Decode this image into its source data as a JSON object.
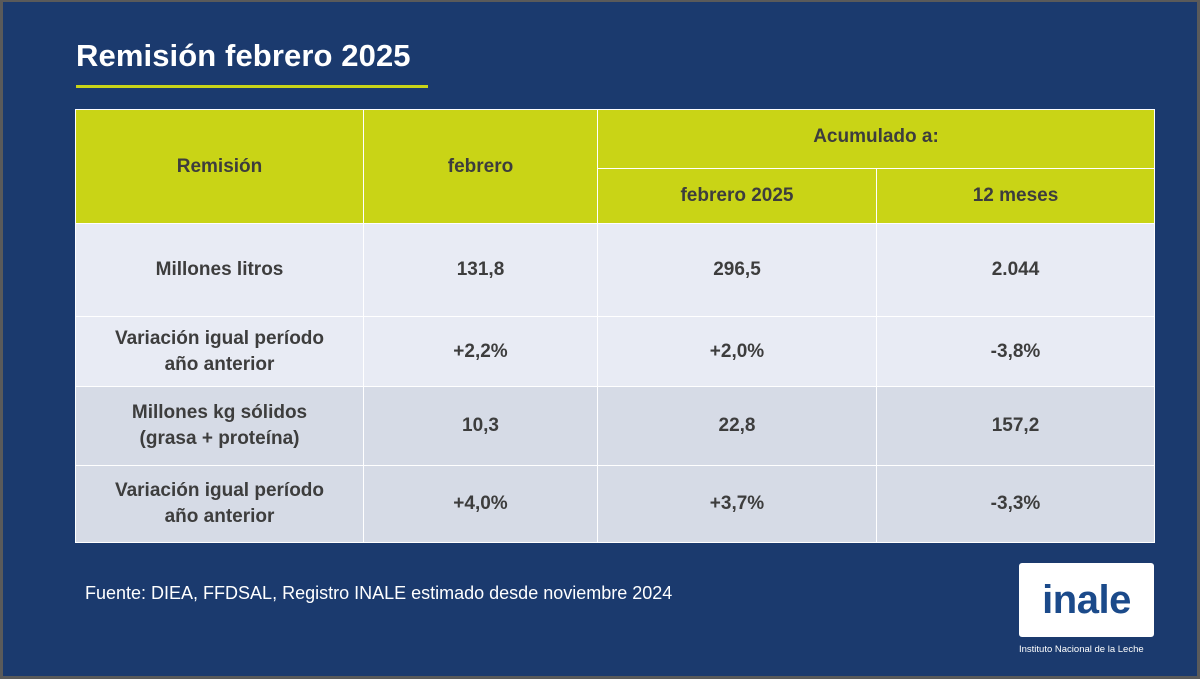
{
  "title": "Remisión febrero 2025",
  "table": {
    "headers": {
      "remision": "Remisión",
      "febrero": "febrero",
      "acumulado": "Acumulado a:",
      "acum_febrero": "febrero 2025",
      "acum_12": "12 meses"
    },
    "rows": [
      {
        "label_1": "Millones litros",
        "label_2": "",
        "febrero": "131,8",
        "acum_febrero": "296,5",
        "acum_12": "2.044"
      },
      {
        "label_1": "Variación igual período",
        "label_2": "año anterior",
        "febrero": "+2,2%",
        "acum_febrero": "+2,0%",
        "acum_12": "-3,8%"
      },
      {
        "label_1": "Millones kg sólidos",
        "label_2": "(grasa + proteína)",
        "febrero": "10,3",
        "acum_febrero": "22,8",
        "acum_12": "157,2"
      },
      {
        "label_1": "Variación igual período",
        "label_2": "año anterior",
        "febrero": "+4,0%",
        "acum_febrero": "+3,7%",
        "acum_12": "-3,3%"
      }
    ]
  },
  "source": "Fuente: DIEA, FFDSAL, Registro INALE estimado desde noviembre 2024",
  "logo": {
    "text": "inale",
    "caption": "Instituto Nacional de la Leche"
  },
  "colors": {
    "background": "#1b3a6e",
    "accent": "#c9d416",
    "row_light": "#e8ebf4",
    "row_dark": "#d6dbe6"
  }
}
